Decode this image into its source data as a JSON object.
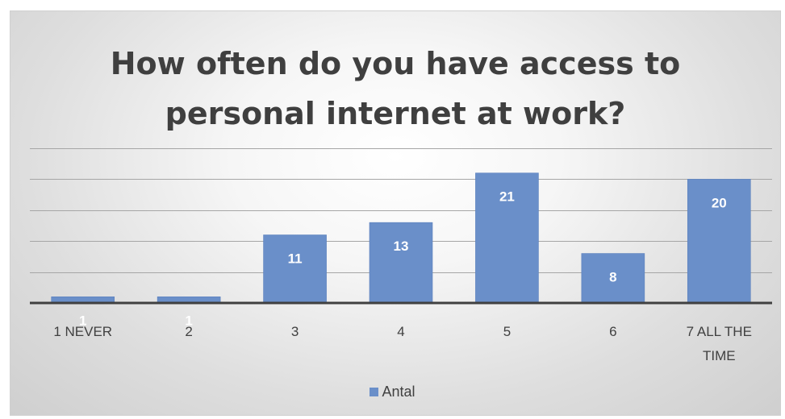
{
  "chart_data": {
    "type": "bar",
    "title_lines": [
      "How often do you have access to",
      "personal internet at work?"
    ],
    "categories": [
      "1 NEVER",
      "2",
      "3",
      "4",
      "5",
      "6",
      "7 ALL THE TIME"
    ],
    "series": [
      {
        "name": "Antal",
        "values": [
          1,
          1,
          11,
          13,
          21,
          8,
          20
        ]
      }
    ],
    "ylim": [
      0,
      25
    ],
    "y_gridline_step": 5,
    "data_labels": true,
    "legend_position": "bottom",
    "grid": true,
    "colors": {
      "bar": "#6a8fc9",
      "label": "#ffffff",
      "axis": "#404040",
      "grid": "#a6a6a6"
    }
  }
}
